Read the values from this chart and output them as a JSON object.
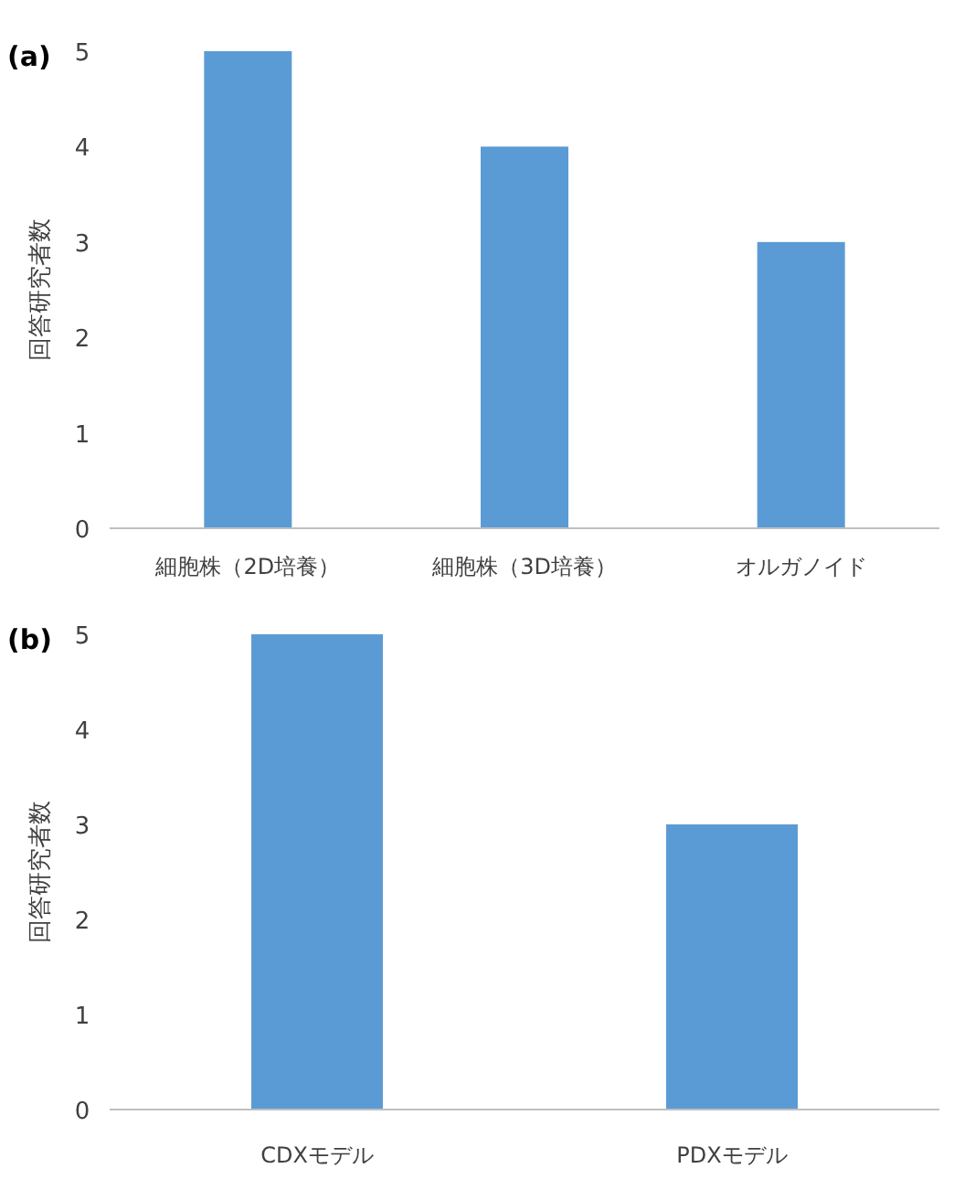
{
  "chart_data": [
    {
      "type": "bar",
      "title": "(a)",
      "ylabel": "回答研究者数",
      "categories": [
        "細胞株（2D培養）",
        "細胞株（3D培養）",
        "オルガノイド"
      ],
      "values": [
        5,
        4,
        3
      ],
      "color": "#5b9bd5",
      "ylim": [
        0,
        5
      ],
      "yticks": [
        0,
        1,
        2,
        3,
        4,
        5
      ]
    },
    {
      "type": "bar",
      "title": "(b)",
      "ylabel": "回答研究者数",
      "categories": [
        "CDXモデル",
        "PDXモデル"
      ],
      "values": [
        5,
        3
      ],
      "color": "#5b9bd5",
      "ylim": [
        0,
        5
      ],
      "yticks": [
        0,
        1,
        2,
        3,
        4,
        5
      ]
    }
  ]
}
